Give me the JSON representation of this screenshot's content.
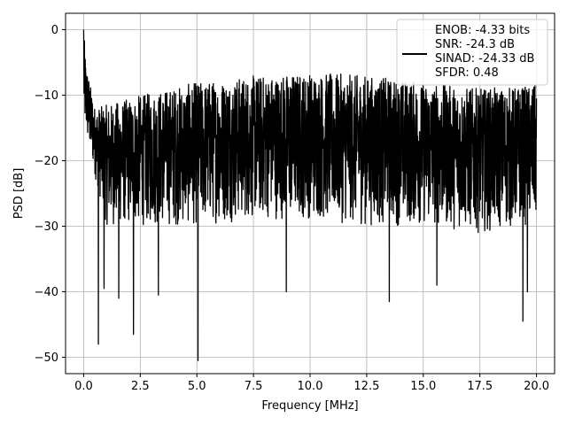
{
  "chart_data": {
    "type": "line",
    "xlabel": "Frequency [MHz]",
    "ylabel": "PSD [dB]",
    "xlim": [
      -0.8,
      20.8
    ],
    "ylim": [
      -52.5,
      2.5
    ],
    "x_ticks": [
      0.0,
      2.5,
      5.0,
      7.5,
      10.0,
      12.5,
      15.0,
      17.5,
      20.0
    ],
    "x_tick_labels": [
      "0.0",
      "2.5",
      "5.0",
      "7.5",
      "10.0",
      "12.5",
      "15.0",
      "17.5",
      "20.0"
    ],
    "y_ticks": [
      0,
      -10,
      -20,
      -30,
      -40,
      -50
    ],
    "y_tick_labels": [
      "0",
      "−10",
      "−20",
      "−30",
      "−40",
      "−50"
    ],
    "grid": true,
    "legend_position": "top-right",
    "series": [
      {
        "name": "ENOB: -4.33 bits\nSNR: -24.3 dB\nSINAD: -24.33 dB\nSFDR: 0.48",
        "color": "#000000",
        "style": "dense noise-like power spectral density",
        "x_range": [
          0.0,
          20.0
        ],
        "peak": {
          "x": 0.0,
          "y": 0.0
        },
        "mean_level_db": -18,
        "upper_envelope_db": [
          [
            0.0,
            0.0
          ],
          [
            0.1,
            -5
          ],
          [
            0.5,
            -12
          ],
          [
            1.0,
            -11.5
          ],
          [
            2.5,
            -10
          ],
          [
            5.0,
            -8
          ],
          [
            7.5,
            -7
          ],
          [
            10.0,
            -6.5
          ],
          [
            12.5,
            -7
          ],
          [
            15.0,
            -8
          ],
          [
            17.5,
            -9
          ],
          [
            20.0,
            -8.5
          ]
        ],
        "lower_envelope_db": [
          [
            0.0,
            -15
          ],
          [
            1.0,
            -30
          ],
          [
            2.5,
            -30
          ],
          [
            5.0,
            -30
          ],
          [
            7.5,
            -29
          ],
          [
            10.0,
            -29
          ],
          [
            12.5,
            -30
          ],
          [
            15.0,
            -30
          ],
          [
            17.5,
            -31
          ],
          [
            20.0,
            -30
          ]
        ],
        "deep_nulls": [
          {
            "x": 0.65,
            "y": -48
          },
          {
            "x": 0.9,
            "y": -39.5
          },
          {
            "x": 1.55,
            "y": -41
          },
          {
            "x": 2.2,
            "y": -46.5
          },
          {
            "x": 3.3,
            "y": -40.5
          },
          {
            "x": 5.05,
            "y": -50.5
          },
          {
            "x": 8.95,
            "y": -40
          },
          {
            "x": 13.5,
            "y": -41.5
          },
          {
            "x": 15.6,
            "y": -39
          },
          {
            "x": 19.4,
            "y": -44.5
          },
          {
            "x": 19.6,
            "y": -40
          }
        ]
      }
    ],
    "legend_lines": [
      "ENOB: -4.33 bits",
      "SNR: -24.3 dB",
      "SINAD: -24.33 dB",
      "SFDR: 0.48"
    ]
  }
}
